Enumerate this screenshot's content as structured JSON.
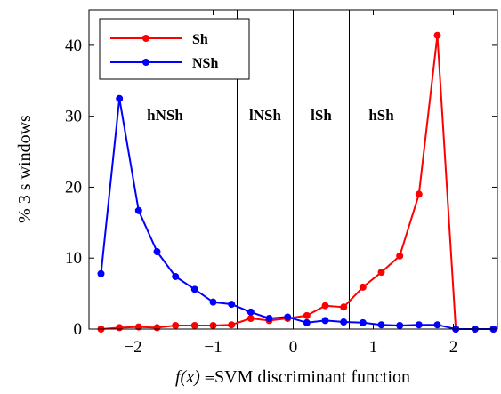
{
  "chart_data": {
    "type": "line",
    "xlabel_math": "f(x)",
    "xlabel_rest": " ≡SVM discriminant function",
    "ylabel": "% 3 s windows",
    "xlim": [
      -2.55,
      2.55
    ],
    "ylim": [
      0,
      45
    ],
    "xticks": [
      -2,
      -1,
      0,
      1,
      2
    ],
    "xtick_labels": [
      "−2",
      "−1",
      "0",
      "1",
      "2"
    ],
    "yticks": [
      0,
      10,
      20,
      30,
      40
    ],
    "ytick_labels": [
      "0",
      "10",
      "20",
      "30",
      "40"
    ],
    "grid": false,
    "legend_position": "top-left",
    "region_boundaries": [
      -0.7,
      0,
      0.7
    ],
    "regions": [
      {
        "label": "hNSh",
        "x": -1.6
      },
      {
        "label": "lNSh",
        "x": -0.35
      },
      {
        "label": "lSh",
        "x": 0.35
      },
      {
        "label": "hSh",
        "x": 1.1
      }
    ],
    "x": [
      -2.4,
      -2.17,
      -1.93,
      -1.7,
      -1.47,
      -1.23,
      -1.0,
      -0.77,
      -0.53,
      -0.3,
      -0.07,
      0.17,
      0.4,
      0.63,
      0.87,
      1.1,
      1.33,
      1.57,
      1.8,
      2.03,
      2.27,
      2.5
    ],
    "series": [
      {
        "name": "Sh",
        "color": "#ff0000",
        "values": [
          0.0,
          0.2,
          0.3,
          0.2,
          0.5,
          0.5,
          0.5,
          0.6,
          1.5,
          1.2,
          1.5,
          1.9,
          3.3,
          3.1,
          5.9,
          8.0,
          10.3,
          19.0,
          41.4,
          0.0,
          0.0,
          0.0
        ]
      },
      {
        "name": "NSh",
        "color": "#0000ff",
        "values": [
          7.8,
          32.5,
          16.7,
          10.9,
          7.4,
          5.6,
          3.8,
          3.5,
          2.4,
          1.5,
          1.7,
          0.9,
          1.2,
          1.0,
          0.9,
          0.6,
          0.5,
          0.6,
          0.6,
          0.0,
          0.0,
          0.0
        ]
      }
    ]
  }
}
